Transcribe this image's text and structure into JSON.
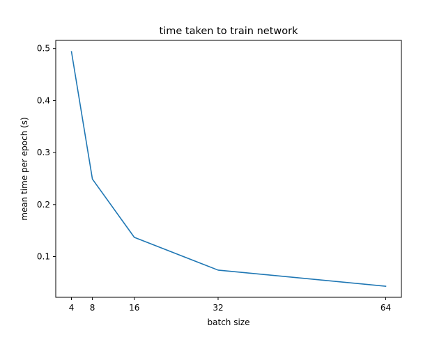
{
  "chart_data": {
    "type": "line",
    "title": "time taken to train network",
    "xlabel": "batch size",
    "ylabel": "mean time per epoch (s)",
    "x_ticks": [
      4,
      8,
      16,
      32,
      64
    ],
    "y_ticks": [
      0.1,
      0.2,
      0.3,
      0.4,
      0.5
    ],
    "xlim": [
      1,
      67
    ],
    "ylim": [
      0.0217,
      0.5157
    ],
    "grid": false,
    "series": [
      {
        "color": "#1f77b4",
        "x": [
          4,
          8,
          16,
          32,
          64
        ],
        "y": [
          0.494,
          0.249,
          0.137,
          0.074,
          0.043
        ]
      }
    ]
  }
}
